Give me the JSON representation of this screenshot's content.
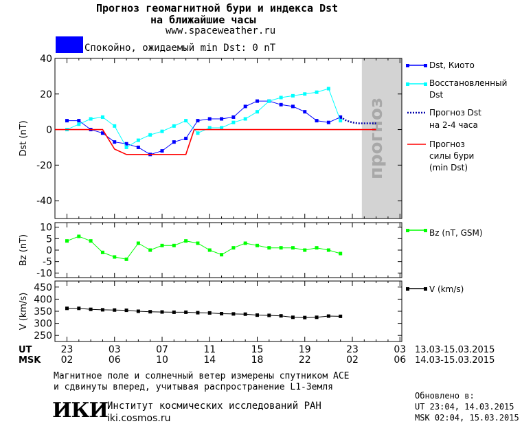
{
  "header": {
    "title_line1": "Прогноз геомагнитной бури и индекса Dst",
    "title_line2": "на ближайшие часы",
    "url": "www.spaceweather.ru",
    "status_color": "#0000ff",
    "status_text": "Спокойно, ожидаемый min Dst: 0 nT"
  },
  "footer": {
    "note_line1": "Магнитное поле и солнечный ветер измерены спутником ACE",
    "note_line2": "и сдвинуты вперед, учитывая распространение L1-Земля",
    "logo_text": "ИКИ",
    "institute": "Институт космических исследований РАН",
    "institute_url": "iki.cosmos.ru",
    "updated_label": "Обновлено в:",
    "updated_ut": "UT  23:04, 14.03.2015",
    "updated_msk": "MSK 02:04, 15.03.2015"
  },
  "chart_data": [
    {
      "type": "line",
      "ylabel": "Dst (nT)",
      "ylim": [
        -50,
        40
      ],
      "yticks": [
        40,
        20,
        0,
        -20,
        -40
      ],
      "forecast_label": "прогноз",
      "colors": {
        "dst": "#0000ff",
        "recovered": "#00ffff",
        "forecast": "#0000aa",
        "storm": "#ff0000",
        "forecast_bg": "#d3d3d3"
      },
      "legend": [
        {
          "name": "Dst, Киото",
          "color": "#0000ff",
          "style": "line-marker"
        },
        {
          "name": "Восстановленный Dst",
          "color": "#00ffff",
          "style": "line-marker"
        },
        {
          "name": "Прогноз Dst на 2-4 часа",
          "color": "#0000aa",
          "style": "dotted"
        },
        {
          "name": "Прогноз силы бури (min Dst)",
          "color": "#ff0000",
          "style": "line"
        }
      ],
      "series": [
        {
          "name": "Dst, Киото",
          "x": [
            0,
            1,
            2,
            3,
            4,
            5,
            6,
            7,
            8,
            9,
            10,
            11,
            12,
            13,
            14,
            15,
            16,
            17,
            18,
            19,
            20,
            21,
            22,
            23
          ],
          "values": [
            5,
            5,
            0,
            -2,
            -7,
            -8,
            -10,
            -14,
            -12,
            -7,
            -5,
            5,
            6,
            6,
            7,
            13,
            16,
            16,
            14,
            13,
            10,
            5,
            4,
            7
          ]
        },
        {
          "name": "Восстановленный Dst",
          "x": [
            0,
            1,
            2,
            3,
            4,
            5,
            6,
            7,
            8,
            9,
            10,
            11,
            12,
            13,
            14,
            15,
            16,
            17,
            18,
            19,
            20,
            21,
            22,
            23
          ],
          "values": [
            0,
            3,
            6,
            7,
            2,
            -10,
            -6,
            -3,
            -1,
            2,
            5,
            -2,
            1,
            1,
            4,
            6,
            10,
            16,
            18,
            19,
            20,
            21,
            23,
            5
          ]
        },
        {
          "name": "Прогноз Dst на 2-4 часа",
          "x": [
            23,
            23.5,
            24,
            24.5,
            25,
            26
          ],
          "values": [
            7,
            5,
            4,
            3.5,
            3.5,
            3.5
          ]
        },
        {
          "name": "Прогноз силы бури (min Dst)",
          "x": [
            -1,
            1,
            2,
            3,
            4,
            5,
            8,
            9,
            10,
            10.7,
            26
          ],
          "values": [
            0,
            0,
            0,
            0,
            -11,
            -14,
            -14,
            -14,
            -14,
            0,
            0
          ]
        }
      ]
    },
    {
      "type": "line",
      "ylabel": "Bz (nT)",
      "ylim": [
        -12,
        12
      ],
      "yticks": [
        10,
        5,
        0,
        -5,
        -10
      ],
      "legend": [
        {
          "name": "Bz (nT, GSM)",
          "color": "#00ff00"
        }
      ],
      "series": [
        {
          "name": "Bz (nT, GSM)",
          "x": [
            0,
            1,
            2,
            3,
            4,
            5,
            6,
            7,
            8,
            9,
            10,
            11,
            12,
            13,
            14,
            15,
            16,
            17,
            18,
            19,
            20,
            21,
            22,
            23
          ],
          "values": [
            4,
            6,
            4,
            -1,
            -3,
            -4,
            3,
            0,
            2,
            2,
            4,
            3,
            0,
            -2,
            1,
            3,
            2,
            1,
            1,
            1,
            0,
            1,
            0,
            -1.5
          ]
        }
      ]
    },
    {
      "type": "line",
      "ylabel": "V (km/s)",
      "ylim": [
        225,
        475
      ],
      "yticks": [
        450,
        400,
        350,
        300,
        250
      ],
      "legend": [
        {
          "name": "V (km/s)",
          "color": "#000000"
        }
      ],
      "series": [
        {
          "name": "V (km/s)",
          "x": [
            0,
            1,
            2,
            3,
            4,
            5,
            6,
            7,
            8,
            9,
            10,
            11,
            12,
            13,
            14,
            15,
            16,
            17,
            18,
            19,
            20,
            21,
            22,
            23
          ],
          "values": [
            362,
            362,
            358,
            356,
            355,
            354,
            350,
            348,
            347,
            346,
            346,
            344,
            343,
            340,
            339,
            338,
            334,
            333,
            331,
            325,
            324,
            325,
            330,
            329
          ]
        }
      ]
    }
  ],
  "xaxis": {
    "ut_label": "UT",
    "msk_label": "MSK",
    "ut_ticks": [
      "23",
      "03",
      "07",
      "11",
      "15",
      "19",
      "23",
      "03"
    ],
    "msk_ticks": [
      "02",
      "06",
      "10",
      "14",
      "18",
      "22",
      "02",
      "06"
    ],
    "ut_range": "13.03-15.03.2015",
    "msk_range": "14.03-15.03.2015"
  }
}
